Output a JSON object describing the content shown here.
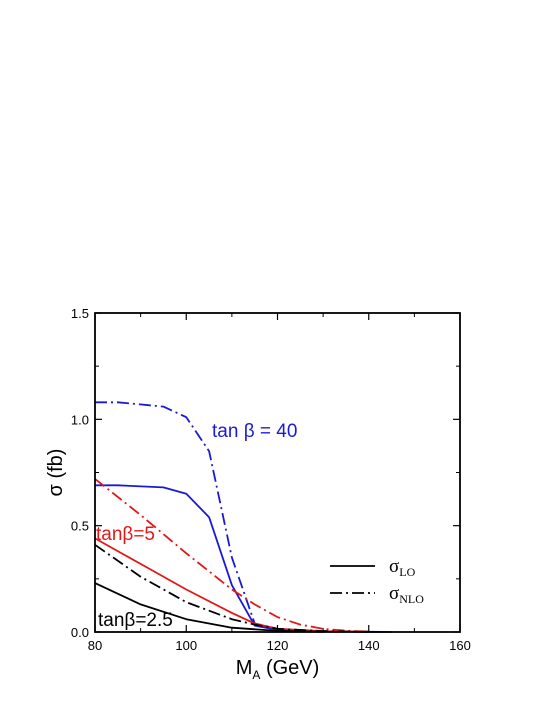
{
  "chart_data": {
    "type": "line",
    "title": "",
    "xlabel": "M",
    "xlabel_sub": "A",
    "xlabel_unit": " (GeV)",
    "ylabel": "σ (fb)",
    "xlim": [
      80,
      160
    ],
    "ylim": [
      0,
      1.5
    ],
    "xticks": [
      80,
      100,
      120,
      140,
      160
    ],
    "yticks": [
      0.0,
      0.5,
      1.0,
      1.5
    ],
    "xtick_labels": [
      "80",
      "100",
      "120",
      "140",
      "160"
    ],
    "ytick_labels": [
      "0.0",
      "0.5",
      "1.0",
      "1.5"
    ],
    "grid": false,
    "legend_position": "right",
    "legend": [
      {
        "symbol": "σ",
        "sub": "LO",
        "style": "solid"
      },
      {
        "symbol": "σ",
        "sub": "NLO",
        "style": "dashdot"
      }
    ],
    "annotations": [
      {
        "text": "tan β = 40",
        "color": "#1a1ad6"
      },
      {
        "text": "tanβ=5",
        "color": "#e01818"
      },
      {
        "text": "tanβ=2.5",
        "color": "#000000"
      }
    ],
    "series": [
      {
        "group": "tanβ=40",
        "order": "LO",
        "style": "solid",
        "color": "#1a1ad6",
        "x": [
          80,
          85,
          95,
          100,
          105,
          110,
          115,
          120,
          125,
          130,
          140,
          145
        ],
        "y": [
          0.69,
          0.69,
          0.68,
          0.65,
          0.54,
          0.22,
          0.03,
          0.01,
          0.005,
          0.003,
          0.001,
          0.0
        ]
      },
      {
        "group": "tanβ=40",
        "order": "NLO",
        "style": "dashdot",
        "color": "#1a1ad6",
        "x": [
          80,
          85,
          95,
          100,
          105,
          108,
          110,
          115,
          120,
          125,
          130,
          140
        ],
        "y": [
          1.08,
          1.08,
          1.06,
          1.01,
          0.85,
          0.55,
          0.35,
          0.04,
          0.015,
          0.008,
          0.004,
          0.001
        ]
      },
      {
        "group": "tanβ=5",
        "order": "LO",
        "style": "solid",
        "color": "#e01818",
        "x": [
          80,
          90,
          100,
          110,
          115,
          120,
          130,
          140
        ],
        "y": [
          0.44,
          0.32,
          0.2,
          0.09,
          0.04,
          0.015,
          0.004,
          0.001
        ]
      },
      {
        "group": "tanβ=5",
        "order": "NLO",
        "style": "dashdot",
        "color": "#e01818",
        "x": [
          80,
          90,
          100,
          110,
          115,
          120,
          125,
          130,
          135,
          140
        ],
        "y": [
          0.72,
          0.55,
          0.37,
          0.2,
          0.13,
          0.07,
          0.035,
          0.015,
          0.006,
          0.002
        ]
      },
      {
        "group": "tanβ=2.5",
        "order": "LO",
        "style": "solid",
        "color": "#000000",
        "x": [
          80,
          90,
          100,
          110,
          120,
          130
        ],
        "y": [
          0.23,
          0.13,
          0.06,
          0.02,
          0.005,
          0.001
        ]
      },
      {
        "group": "tanβ=2.5",
        "order": "NLO",
        "style": "dashdot",
        "color": "#000000",
        "x": [
          80,
          90,
          100,
          110,
          115,
          120,
          130,
          140
        ],
        "y": [
          0.41,
          0.26,
          0.14,
          0.06,
          0.035,
          0.015,
          0.004,
          0.001
        ]
      }
    ]
  }
}
